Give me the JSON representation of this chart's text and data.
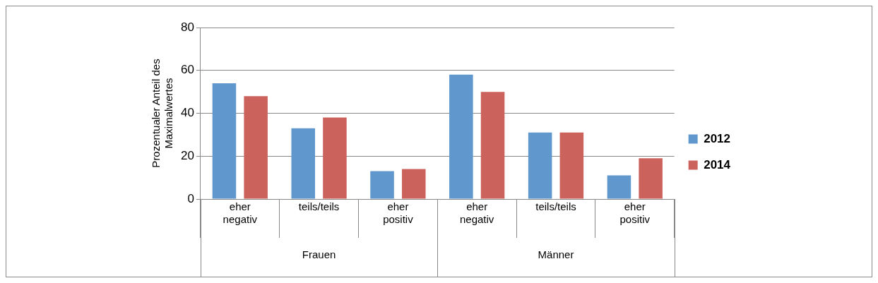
{
  "chart_data": {
    "type": "bar",
    "ylabel": "Prozentualer Anteil des Maximalwertes",
    "categories": [
      "eher negativ",
      "teils/teils",
      "eher positiv",
      "eher negativ",
      "teils/teils",
      "eher positiv"
    ],
    "annotations": [
      "Frauen",
      "Männer"
    ],
    "series": [
      {
        "name": "2012",
        "color": "#6097cc",
        "values": [
          54,
          33,
          13,
          58,
          31,
          11
        ]
      },
      {
        "name": "2014",
        "color": "#cc625c",
        "values": [
          48,
          38,
          14,
          50,
          31,
          19
        ]
      }
    ],
    "ylim": [
      0,
      80
    ],
    "yticks": [
      0,
      20,
      40,
      60,
      80
    ],
    "grid": "y",
    "legend": "right"
  }
}
